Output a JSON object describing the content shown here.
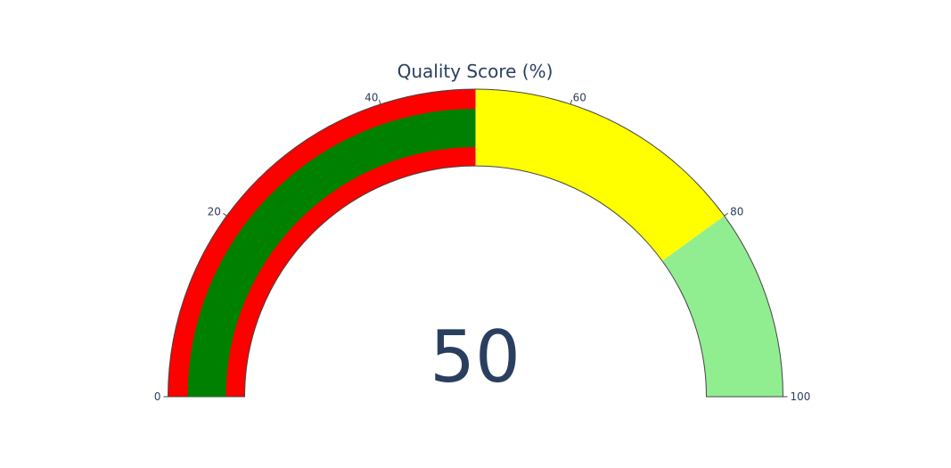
{
  "chart_data": {
    "type": "gauge",
    "title": "Quality Score (%)",
    "value": 50,
    "range": [
      0,
      100
    ],
    "tick_values": [
      0,
      20,
      40,
      60,
      80,
      100
    ],
    "tick_labels": [
      "0",
      "20",
      "40",
      "60",
      "80",
      "100"
    ],
    "steps": [
      {
        "range": [
          0,
          50
        ],
        "color": "#ff0000"
      },
      {
        "range": [
          50,
          80
        ],
        "color": "#ffff00"
      },
      {
        "range": [
          80,
          100
        ],
        "color": "#90ee90"
      }
    ],
    "bar_color": "#008000",
    "text_color": "#2a3f5f",
    "outline_color": "#444444"
  }
}
